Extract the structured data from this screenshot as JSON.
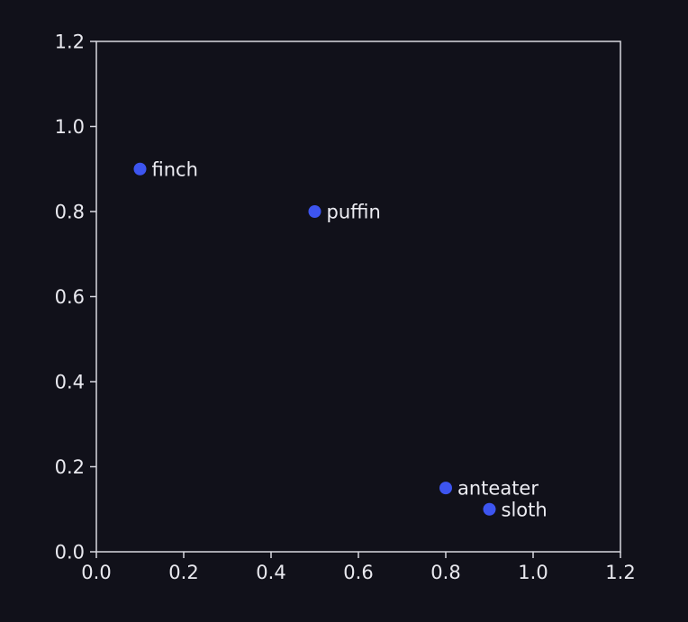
{
  "chart_data": {
    "type": "scatter",
    "title": "",
    "xlabel": "",
    "ylabel": "",
    "xlim": [
      0,
      1.2
    ],
    "ylim": [
      0,
      1.2
    ],
    "xticks": [
      "0.0",
      "0.2",
      "0.4",
      "0.6",
      "0.8",
      "1.0",
      "1.2"
    ],
    "yticks": [
      "0.0",
      "0.2",
      "0.4",
      "0.6",
      "0.8",
      "1.0",
      "1.2"
    ],
    "grid": false,
    "points": [
      {
        "label": "finch",
        "x": 0.1,
        "y": 0.9
      },
      {
        "label": "puffin",
        "x": 0.5,
        "y": 0.8
      },
      {
        "label": "anteater",
        "x": 0.8,
        "y": 0.15
      },
      {
        "label": "sloth",
        "x": 0.9,
        "y": 0.1
      }
    ],
    "colors": {
      "background": "#11111a",
      "axis": "#d9d9e0",
      "text": "#e9e9ef",
      "marker": "#3d55f0"
    }
  }
}
